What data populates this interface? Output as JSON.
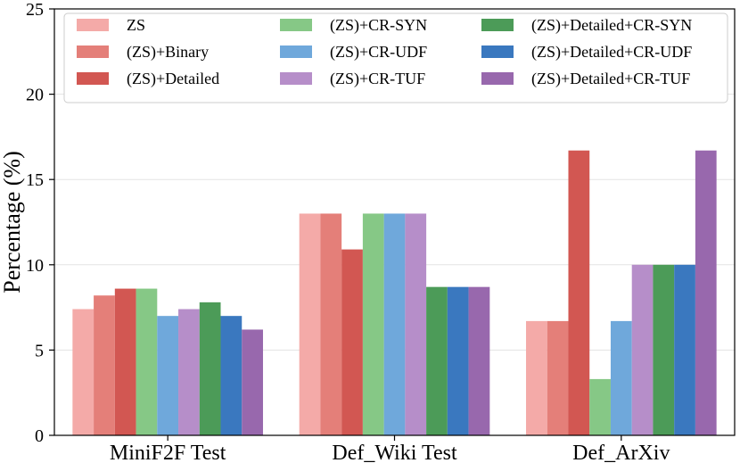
{
  "chart_data": {
    "type": "bar",
    "title": "",
    "xlabel": "",
    "ylabel": "Percentage (%)",
    "ylim": [
      0,
      25
    ],
    "yticks": [
      0,
      5,
      10,
      15,
      20,
      25
    ],
    "grid": "horizontal",
    "legend_position": "top",
    "categories": [
      "MiniF2F Test",
      "Def_Wiki Test",
      "Def_ArXiv"
    ],
    "series": [
      {
        "name": "ZS",
        "color": "#f4aaa8",
        "values": [
          7.4,
          13.0,
          6.7
        ]
      },
      {
        "name": "(ZS)+Binary",
        "color": "#e47f79",
        "values": [
          8.2,
          13.0,
          6.7
        ]
      },
      {
        "name": "(ZS)+Detailed",
        "color": "#d25752",
        "values": [
          8.6,
          10.9,
          16.7
        ]
      },
      {
        "name": "(ZS)+CR-SYN",
        "color": "#86c886",
        "values": [
          8.6,
          13.0,
          3.3
        ]
      },
      {
        "name": "(ZS)+CR-UDF",
        "color": "#6fa8db",
        "values": [
          7.0,
          13.0,
          6.7
        ]
      },
      {
        "name": "(ZS)+CR-TUF",
        "color": "#b68ec9",
        "values": [
          7.4,
          13.0,
          10.0
        ]
      },
      {
        "name": "(ZS)+Detailed+CR-SYN",
        "color": "#4c9b58",
        "values": [
          7.8,
          8.7,
          10.0
        ]
      },
      {
        "name": "(ZS)+Detailed+CR-UDF",
        "color": "#3a78bf",
        "values": [
          7.0,
          8.7,
          10.0
        ]
      },
      {
        "name": "(ZS)+Detailed+CR-TUF",
        "color": "#9868ad",
        "values": [
          6.2,
          8.7,
          16.7
        ]
      }
    ]
  }
}
